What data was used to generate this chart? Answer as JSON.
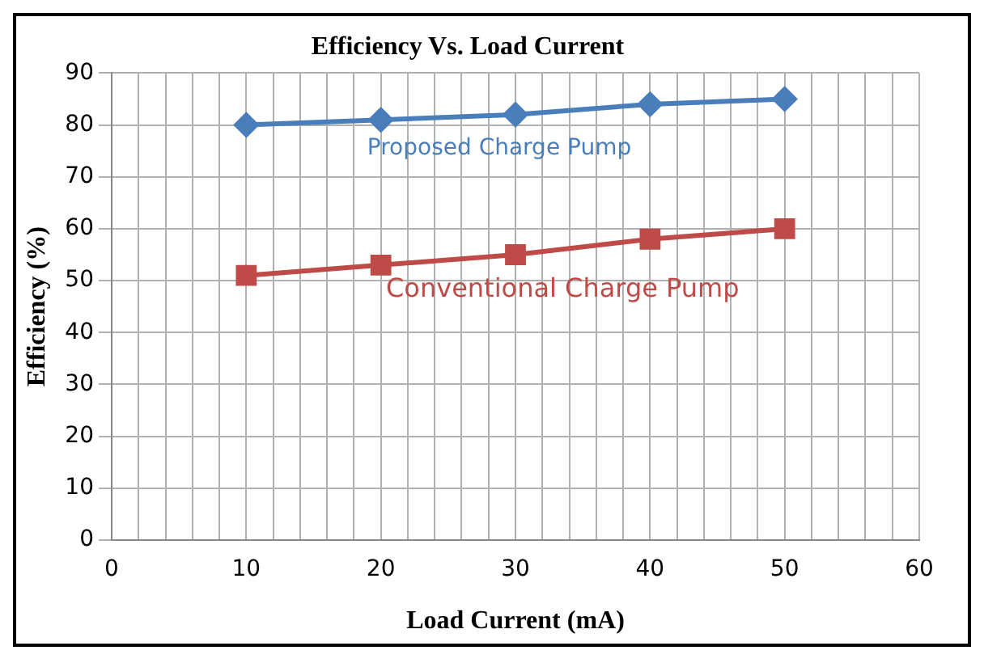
{
  "chart_data": {
    "type": "line",
    "title": "Efficiency Vs. Load Current",
    "xlabel": "Load Current (mA)",
    "ylabel": "Efficiency (%)",
    "x": [
      10,
      20,
      30,
      40,
      50
    ],
    "series": [
      {
        "name": "Proposed Charge Pump",
        "color": "#4a7ebb",
        "marker": "diamond",
        "values": [
          80,
          81,
          82,
          84,
          85
        ]
      },
      {
        "name": "Conventional Charge Pump",
        "color": "#be4b48",
        "marker": "square",
        "values": [
          51,
          53,
          55,
          58,
          60
        ]
      }
    ],
    "xlim": [
      0,
      60
    ],
    "xticks": [
      0,
      {
        "value": 2,
        "label": null
      },
      {
        "value": 4,
        "label": null
      },
      {
        "value": 6,
        "label": null
      },
      {
        "value": 8,
        "label": null
      },
      10,
      {
        "value": 12,
        "label": null
      },
      {
        "value": 14,
        "label": null
      },
      {
        "value": 16,
        "label": null
      },
      {
        "value": 18,
        "label": null
      },
      20,
      {
        "value": 22,
        "label": null
      },
      {
        "value": 24,
        "label": null
      },
      {
        "value": 26,
        "label": null
      },
      {
        "value": 28,
        "label": null
      },
      30,
      {
        "value": 32,
        "label": null
      },
      {
        "value": 34,
        "label": null
      },
      {
        "value": 36,
        "label": null
      },
      {
        "value": 38,
        "label": null
      },
      40,
      {
        "value": 42,
        "label": null
      },
      {
        "value": 44,
        "label": null
      },
      {
        "value": 46,
        "label": null
      },
      {
        "value": 48,
        "label": null
      },
      50,
      {
        "value": 52,
        "label": null
      },
      {
        "value": 54,
        "label": null
      },
      {
        "value": 56,
        "label": null
      },
      {
        "value": 58,
        "label": null
      },
      60
    ],
    "ylim": [
      0,
      90
    ],
    "yticks": [
      0,
      10,
      20,
      30,
      40,
      50,
      60,
      70,
      80,
      90
    ],
    "grid": true,
    "legend": false,
    "line_style": "solid"
  }
}
